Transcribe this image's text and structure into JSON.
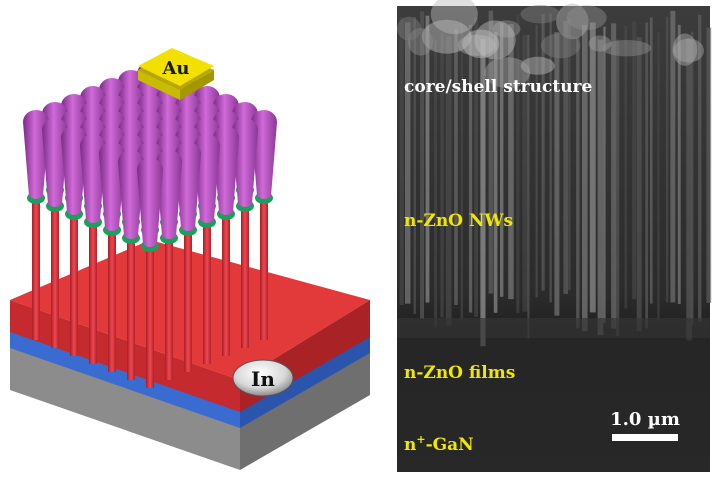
{
  "figure": {
    "schematic": {
      "top_contact_label": "Au",
      "bottom_contact_label": "In",
      "colors": {
        "substrate_top": "#e23a3a",
        "blue_layer": "#3a6bd0",
        "gray_layer": "#9a9a9a",
        "nanowire_core": "#e0303a",
        "shell": "#b54fc0",
        "green_band": "#1aa05a",
        "gold": "#f2e000",
        "silver": "#e8e8e8"
      }
    },
    "sem": {
      "labels": {
        "core_shell": "core/shell structure",
        "nanowires": "n-ZnO NWs",
        "films": "n-ZnO films",
        "substrate": "n+-GaN"
      },
      "scale_bar_label": "1.0 µm",
      "colors": {
        "label_white": "#ffffff",
        "label_yellow": "#f1e600",
        "background": "#2a2a2a"
      }
    }
  }
}
